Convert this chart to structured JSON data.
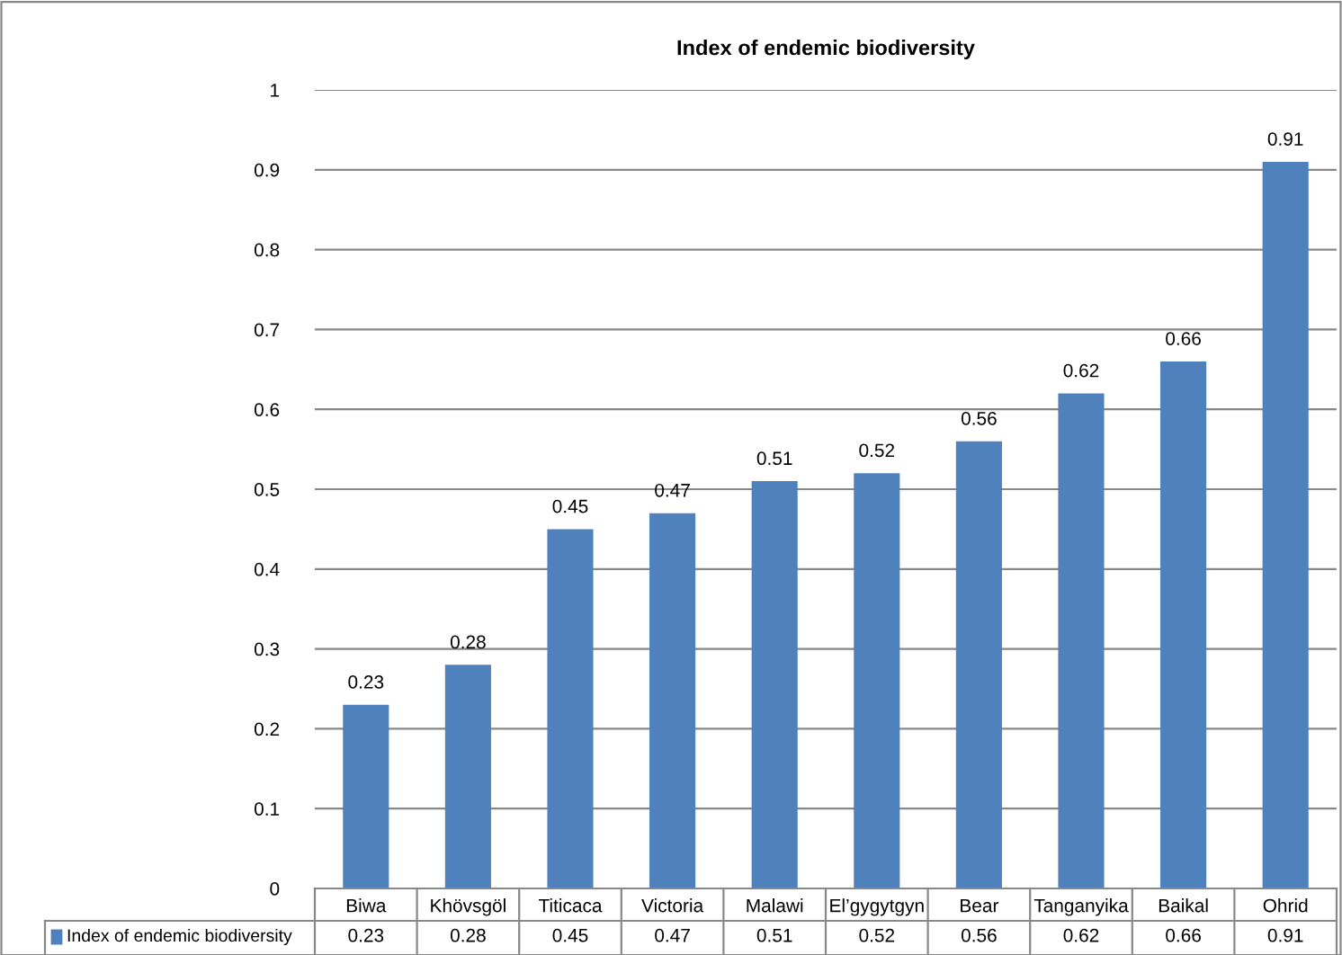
{
  "chart_data": {
    "type": "bar",
    "title": "Index of endemic biodiversity",
    "categories": [
      "Biwa",
      "Khövsgöl",
      "Titicaca",
      "Victoria",
      "Malawi",
      "El’gygytgyn",
      "Bear",
      "Tanganyika",
      "Baikal",
      "Ohrid"
    ],
    "series": [
      {
        "name": "Index of endemic biodiversity",
        "color": "#4f81bd",
        "values": [
          0.23,
          0.28,
          0.45,
          0.47,
          0.51,
          0.52,
          0.56,
          0.62,
          0.66,
          0.91
        ],
        "value_labels": [
          "0.23",
          "0.28",
          "0.45",
          "0.47",
          "0.51",
          "0.52",
          "0.56",
          "0.62",
          "0.66",
          "0.91"
        ]
      }
    ],
    "ylim": [
      0,
      1
    ],
    "yticks": [
      0,
      0.1,
      0.2,
      0.3,
      0.4,
      0.5,
      0.6,
      0.7,
      0.8,
      0.9,
      1
    ],
    "annotations": [
      "0.23",
      "0.28",
      "0.45",
      "0.47",
      "0.51",
      "0.52",
      "0.56",
      "0.62",
      "0.66",
      "0.91"
    ],
    "grid": "y",
    "legend": "bottom"
  }
}
